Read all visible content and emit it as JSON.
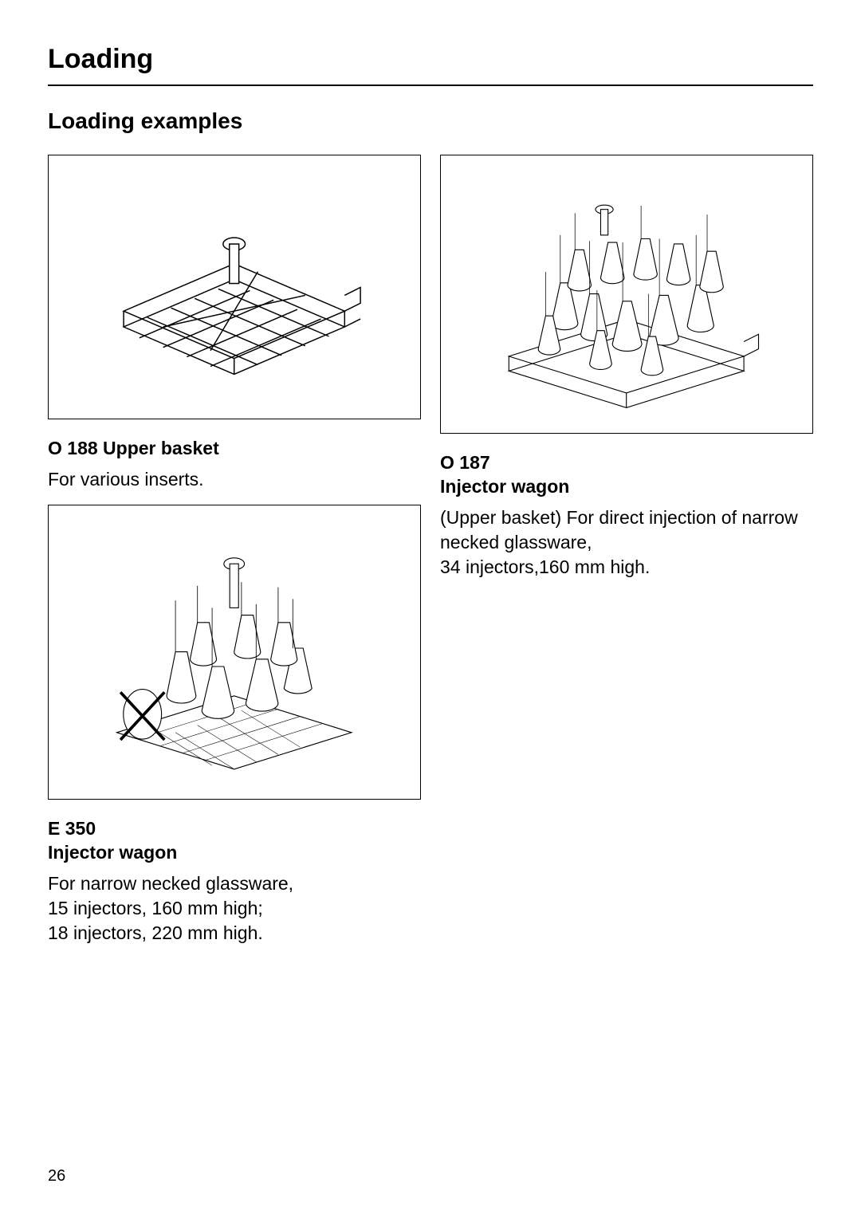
{
  "page": {
    "title": "Loading",
    "subtitle": "Loading examples",
    "page_number": "26"
  },
  "items": {
    "o188": {
      "title": "O 188 Upper basket",
      "desc": "For various inserts."
    },
    "e350": {
      "title_line1": "E 350",
      "title_line2": "Injector wagon",
      "desc": "For narrow necked glassware,\n15 injectors, 160 mm high;\n18 injectors, 220 mm high."
    },
    "o187": {
      "title_line1": "O 187",
      "title_line2": "Injector wagon",
      "desc": "(Upper basket) For direct injection of narrow necked glassware,\n34 injectors,160 mm high."
    }
  },
  "figures": {
    "fig1_alt": "upper-basket-illustration",
    "fig2_alt": "injector-wagon-e350-illustration",
    "fig3_alt": "injector-wagon-o187-illustration"
  },
  "colors": {
    "text": "#000000",
    "background": "#ffffff",
    "border": "#000000"
  }
}
